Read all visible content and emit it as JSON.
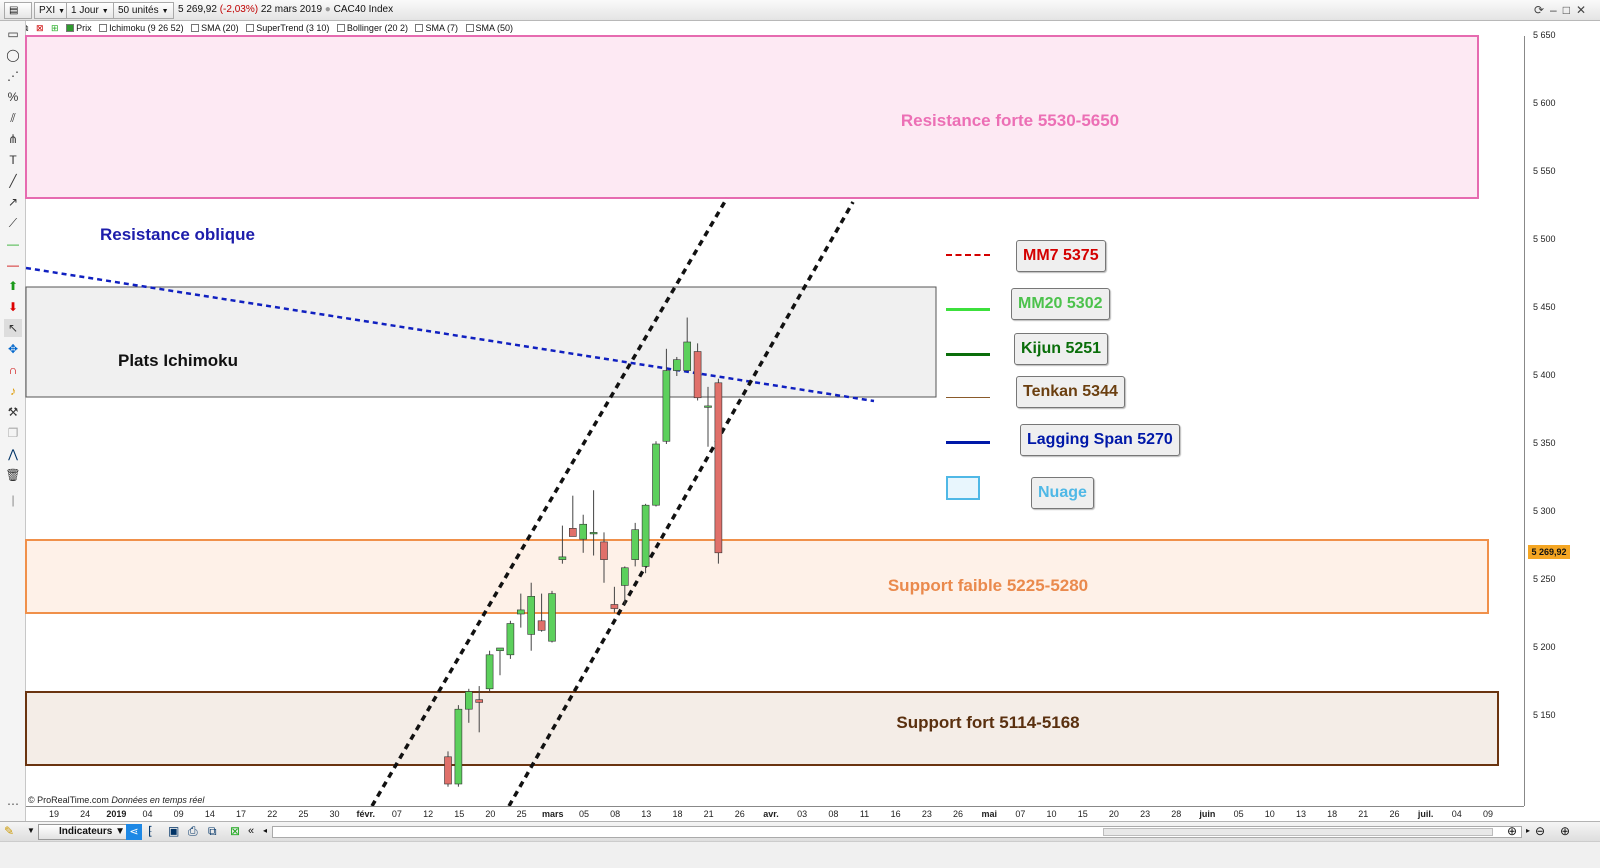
{
  "toolbar": {
    "ticker": "PXI",
    "timeframe": "1 Jour",
    "units": "50 unités",
    "last_price": "5 269,92",
    "change": "(-2,03%)",
    "date": "22 mars 2019",
    "instrument": "CAC40 Index"
  },
  "indicators": [
    "Prix",
    "Ichimoku (9 26 52)",
    "SMA (20)",
    "SuperTrend (3 10)",
    "Bollinger (20 2)",
    "SMA (7)",
    "SMA (50)"
  ],
  "annotations": {
    "resistance_forte": "Resistance forte 5530-5650",
    "resistance_oblique": "Resistance oblique",
    "plats_ichimoku": "Plats Ichimoku",
    "support_faible": "Support faible 5225-5280",
    "support_fort": "Support fort 5114-5168"
  },
  "legend": [
    {
      "label": "MM7 5375",
      "color": "#d40000",
      "line": "dashed"
    },
    {
      "label": "MM20 5302",
      "color": "#4cd24c",
      "line": "solid"
    },
    {
      "label": "Kijun 5251",
      "color": "#0a6e0a",
      "line": "solid"
    },
    {
      "label": "Tenkan 5344",
      "color": "#7a4a12",
      "line": "thin"
    },
    {
      "label": "Lagging Span 5270",
      "color": "#0018a8",
      "line": "solid"
    },
    {
      "label": "Nuage",
      "color": "#4fb8e6",
      "line": "box"
    }
  ],
  "price_axis": {
    "ticks": [
      "5 650",
      "5 600",
      "5 550",
      "5 500",
      "5 450",
      "5 400",
      "5 350",
      "5 300",
      "5 250",
      "5 200",
      "5 150"
    ],
    "last_price_label": "5 269,92"
  },
  "time_axis": {
    "ticks": [
      "19",
      "24",
      "2019",
      "04",
      "09",
      "14",
      "17",
      "22",
      "25",
      "30",
      "févr.",
      "07",
      "12",
      "15",
      "20",
      "25",
      "mars",
      "05",
      "08",
      "13",
      "18",
      "21",
      "26",
      "avr.",
      "03",
      "08",
      "11",
      "16",
      "23",
      "26",
      "mai",
      "07",
      "10",
      "15",
      "20",
      "23",
      "28",
      "juin",
      "05",
      "10",
      "13",
      "18",
      "21",
      "26",
      "juil.",
      "04",
      "09"
    ]
  },
  "bottom": {
    "copyright": "© ProRealTime.com",
    "realtime": "Données en temps réel",
    "indicators_button": "Indicateurs"
  },
  "chart_data": {
    "type": "candlestick",
    "ylim": [
      5100,
      5670
    ],
    "candles": [
      {
        "o": 5120,
        "h": 5124,
        "l": 5098,
        "c": 5100
      },
      {
        "o": 5100,
        "h": 5158,
        "l": 5098,
        "c": 5155
      },
      {
        "o": 5155,
        "h": 5170,
        "l": 5145,
        "c": 5168
      },
      {
        "o": 5162,
        "h": 5172,
        "l": 5138,
        "c": 5160
      },
      {
        "o": 5170,
        "h": 5198,
        "l": 5168,
        "c": 5195
      },
      {
        "o": 5198,
        "h": 5200,
        "l": 5180,
        "c": 5200
      },
      {
        "o": 5195,
        "h": 5220,
        "l": 5192,
        "c": 5218
      },
      {
        "o": 5225,
        "h": 5240,
        "l": 5215,
        "c": 5228
      },
      {
        "o": 5210,
        "h": 5248,
        "l": 5198,
        "c": 5238
      },
      {
        "o": 5220,
        "h": 5240,
        "l": 5212,
        "c": 5213
      },
      {
        "o": 5205,
        "h": 5242,
        "l": 5204,
        "c": 5240
      },
      {
        "o": 5265,
        "h": 5290,
        "l": 5262,
        "c": 5267
      },
      {
        "o": 5288,
        "h": 5312,
        "l": 5282,
        "c": 5282
      },
      {
        "o": 5280,
        "h": 5298,
        "l": 5270,
        "c": 5291
      },
      {
        "o": 5284,
        "h": 5316,
        "l": 5268,
        "c": 5285
      },
      {
        "o": 5278,
        "h": 5285,
        "l": 5248,
        "c": 5265
      },
      {
        "o": 5232,
        "h": 5245,
        "l": 5226,
        "c": 5229
      },
      {
        "o": 5246,
        "h": 5260,
        "l": 5232,
        "c": 5259
      },
      {
        "o": 5265,
        "h": 5292,
        "l": 5260,
        "c": 5287
      },
      {
        "o": 5260,
        "h": 5306,
        "l": 5255,
        "c": 5305
      },
      {
        "o": 5305,
        "h": 5352,
        "l": 5304,
        "c": 5350
      },
      {
        "o": 5352,
        "h": 5420,
        "l": 5350,
        "c": 5404
      },
      {
        "o": 5404,
        "h": 5414,
        "l": 5400,
        "c": 5412
      },
      {
        "o": 5404,
        "h": 5443,
        "l": 5404,
        "c": 5425
      },
      {
        "o": 5418,
        "h": 5424,
        "l": 5382,
        "c": 5384
      },
      {
        "o": 5378,
        "h": 5392,
        "l": 5348,
        "c": 5378
      },
      {
        "o": 5395,
        "h": 5398,
        "l": 5262,
        "c": 5270
      }
    ]
  }
}
